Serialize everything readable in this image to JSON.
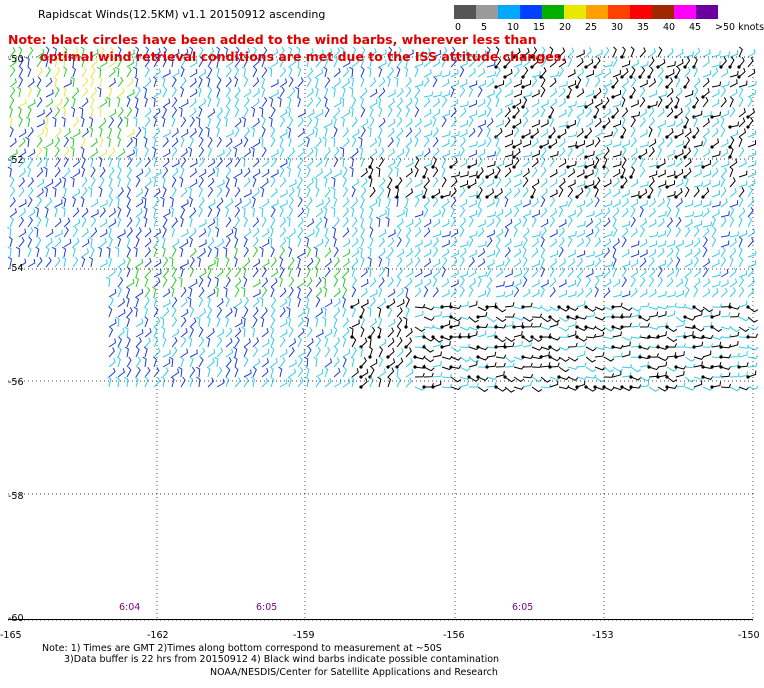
{
  "title": "Rapidscat Winds(12.5KM) v1.1 20150912 ascending",
  "note_line1": "Note: black circles have been added to the wind barbs, wherever less than",
  "note_line2": "optimal wind retrieval conditions are met due to the ISS attitude changes.",
  "scale": {
    "labels": [
      "0",
      "5",
      "10",
      "15",
      "20",
      "25",
      "30",
      "35",
      "40",
      "45",
      ">50 knots"
    ],
    "colors": [
      "#555555",
      "#9a9a9a",
      "#00a8ff",
      "#0040ff",
      "#00b000",
      "#e8e800",
      "#ffa000",
      "#ff4000",
      "#ff0000",
      "#a02800",
      "#ff00ff",
      "#6a00a0"
    ]
  },
  "lat_labels": [
    "-50",
    "-52",
    "-54",
    "-56",
    "-58",
    "-60"
  ],
  "lon_labels": [
    "-165",
    "-162",
    "-159",
    "-156",
    "-153",
    "-150"
  ],
  "times": [
    {
      "label": "6:04"
    },
    {
      "label": "6:05"
    },
    {
      "label": "6:05"
    }
  ],
  "barb_colors": {
    "cyan": "#33ccee",
    "blue": "#1a3fd6",
    "green": "#2ccc2c",
    "yellow": "#e6e64a",
    "black": "#000000"
  },
  "footer": {
    "line1": "Note: 1) Times are GMT 2)Times along bottom correspond to measurement at ~50S",
    "line2": "3)Data buffer is 22 hrs from 20150912 4) Black wind barbs indicate possible contamination",
    "line3": "NOAA/NESDIS/Center for Satellite Applications and Research"
  }
}
